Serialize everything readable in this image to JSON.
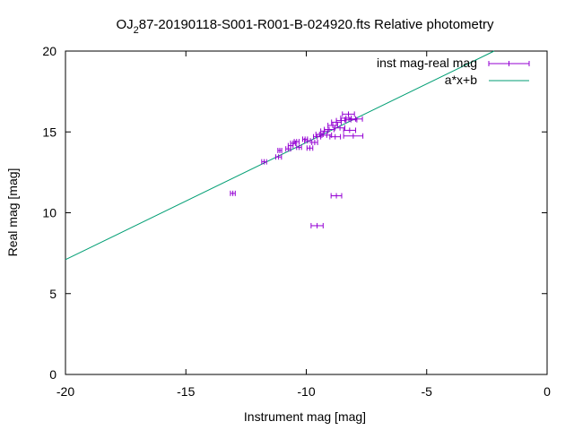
{
  "chart_data": {
    "type": "scatter",
    "title": {
      "prefix": "OJ",
      "sub": "2",
      "suffix": "87-20190118-S001-R001-B-024920.fts Relative photometry"
    },
    "xlabel": "Instrument mag [mag]",
    "ylabel": "Real mag [mag]",
    "xlim": [
      -20,
      0
    ],
    "ylim": [
      0,
      20
    ],
    "xticks": [
      -20,
      -15,
      -10,
      -5,
      0
    ],
    "yticks": [
      0,
      5,
      10,
      15,
      20
    ],
    "xtick_labels": [
      "-20",
      "-15",
      "-10",
      "-5",
      "0"
    ],
    "ytick_labels": [
      "0",
      "5",
      "10",
      "15",
      "20"
    ],
    "grid": false,
    "legend_position": "top-right",
    "colors": {
      "points": "#9400d3",
      "fit": "#009e73",
      "axes": "#000000"
    },
    "series": [
      {
        "name": "inst mag-real mag",
        "kind": "xerrorbars",
        "points": [
          {
            "x": -13.05,
            "y": 11.2,
            "xerr": 0.1,
            "yerr": 0.12
          },
          {
            "x": -11.75,
            "y": 13.15,
            "xerr": 0.1,
            "yerr": 0.15
          },
          {
            "x": -11.15,
            "y": 13.45,
            "xerr": 0.12,
            "yerr": 0.15
          },
          {
            "x": -11.1,
            "y": 13.85,
            "xerr": 0.08,
            "yerr": 0.15
          },
          {
            "x": -10.75,
            "y": 13.95,
            "xerr": 0.1,
            "yerr": 0.1
          },
          {
            "x": -10.65,
            "y": 14.15,
            "xerr": 0.1,
            "yerr": 0.1
          },
          {
            "x": -10.55,
            "y": 14.3,
            "xerr": 0.1,
            "yerr": 0.1
          },
          {
            "x": -10.4,
            "y": 14.4,
            "xerr": 0.1,
            "yerr": 0.1
          },
          {
            "x": -10.3,
            "y": 14.05,
            "xerr": 0.1,
            "yerr": 0.1
          },
          {
            "x": -10.05,
            "y": 14.55,
            "xerr": 0.1,
            "yerr": 0.1
          },
          {
            "x": -9.95,
            "y": 14.45,
            "xerr": 0.12,
            "yerr": 0.1
          },
          {
            "x": -9.85,
            "y": 14.0,
            "xerr": 0.12,
            "yerr": 0.1
          },
          {
            "x": -9.65,
            "y": 14.35,
            "xerr": 0.12,
            "yerr": 0.1
          },
          {
            "x": -9.55,
            "y": 14.7,
            "xerr": 0.15,
            "yerr": 0.1
          },
          {
            "x": -9.45,
            "y": 14.85,
            "xerr": 0.15,
            "yerr": 0.1
          },
          {
            "x": -9.25,
            "y": 15.05,
            "xerr": 0.15,
            "yerr": 0.1
          },
          {
            "x": -9.15,
            "y": 14.8,
            "xerr": 0.2,
            "yerr": 0.1
          },
          {
            "x": -9.05,
            "y": 15.15,
            "xerr": 0.2,
            "yerr": 0.1
          },
          {
            "x": -8.9,
            "y": 15.4,
            "xerr": 0.2,
            "yerr": 0.1
          },
          {
            "x": -8.8,
            "y": 14.7,
            "xerr": 0.22,
            "yerr": 0.1
          },
          {
            "x": -8.75,
            "y": 15.6,
            "xerr": 0.2,
            "yerr": 0.1
          },
          {
            "x": -8.6,
            "y": 15.25,
            "xerr": 0.2,
            "yerr": 0.1
          },
          {
            "x": -8.55,
            "y": 15.7,
            "xerr": 0.2,
            "yerr": 0.1
          },
          {
            "x": -8.35,
            "y": 15.85,
            "xerr": 0.22,
            "yerr": 0.1
          },
          {
            "x": -8.25,
            "y": 16.1,
            "xerr": 0.25,
            "yerr": 0.1
          },
          {
            "x": -8.2,
            "y": 15.1,
            "xerr": 0.25,
            "yerr": 0.1
          },
          {
            "x": -8.15,
            "y": 15.75,
            "xerr": 0.25,
            "yerr": 0.1
          },
          {
            "x": -7.95,
            "y": 15.8,
            "xerr": 0.28,
            "yerr": 0.1
          },
          {
            "x": -8.05,
            "y": 14.75,
            "xerr": 0.4,
            "yerr": 0.1
          },
          {
            "x": -8.75,
            "y": 11.05,
            "xerr": 0.22,
            "yerr": 0.1
          },
          {
            "x": -9.55,
            "y": 9.2,
            "xerr": 0.25,
            "yerr": 0.1
          }
        ]
      },
      {
        "name": "a*x+b",
        "kind": "line",
        "x": [
          -20,
          -2.2
        ],
        "y": [
          7.1,
          20
        ]
      }
    ]
  }
}
